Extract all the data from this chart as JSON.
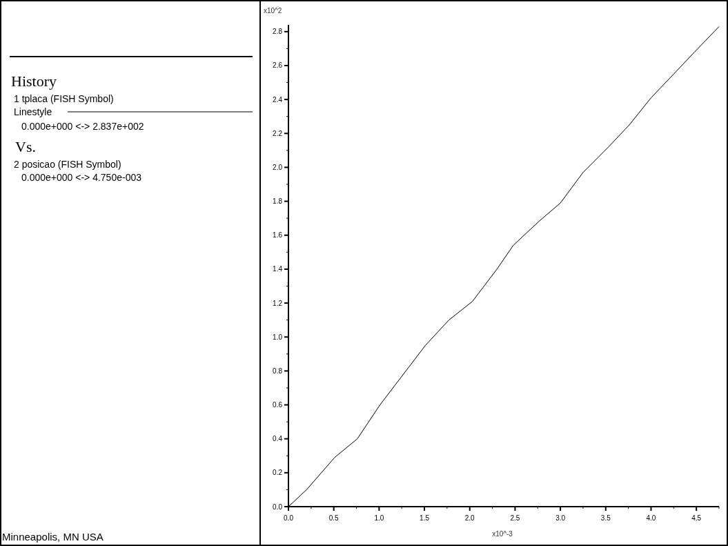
{
  "chart_data": {
    "type": "line",
    "xlabel": "x10^-3",
    "ylabel": "x10^2",
    "annotations": [
      "History",
      "1 tplaca (FISH Symbol)",
      "Linestyle",
      "0.000e+000 <->  2.837e+002",
      "Vs.",
      "2 posicao (FISH Symbol)",
      "0.000e+000 <->  4.750e-003",
      "Minneapolis, MN  USA"
    ],
    "series": [
      {
        "color": "#000000",
        "x": [
          0,
          0.2,
          0.51,
          0.76,
          1.01,
          1.51,
          1.77,
          2.03,
          2.3,
          2.48,
          2.76,
          3.0,
          3.25,
          3.53,
          3.76,
          4.0,
          4.25,
          4.48,
          4.75
        ],
        "values": [
          0,
          0.1,
          0.29,
          0.4,
          0.6,
          0.95,
          1.1,
          1.21,
          1.4,
          1.54,
          1.68,
          1.79,
          1.97,
          2.12,
          2.25,
          2.41,
          2.55,
          2.68,
          2.83
        ]
      }
    ],
    "xlim": [
      0,
      4.75
    ],
    "ylim": [
      0,
      2.84
    ],
    "xticks": [
      {
        "value": 0,
        "label": "0.0"
      },
      {
        "value": 0.25,
        "label": null
      },
      {
        "value": 0.5,
        "label": "0.5"
      },
      {
        "value": 0.75,
        "label": null
      },
      {
        "value": 1,
        "label": "1.0"
      },
      {
        "value": 1.25,
        "label": null
      },
      {
        "value": 1.5,
        "label": "1.5"
      },
      {
        "value": 1.75,
        "label": null
      },
      {
        "value": 2,
        "label": "2.0"
      },
      {
        "value": 2.25,
        "label": null
      },
      {
        "value": 2.5,
        "label": "2.5"
      },
      {
        "value": 2.75,
        "label": null
      },
      {
        "value": 3,
        "label": "3.0"
      },
      {
        "value": 3.25,
        "label": null
      },
      {
        "value": 3.5,
        "label": "3.5"
      },
      {
        "value": 3.75,
        "label": null
      },
      {
        "value": 4,
        "label": "4.0"
      },
      {
        "value": 4.25,
        "label": null
      },
      {
        "value": 4.5,
        "label": "4.5"
      },
      {
        "value": 4.75,
        "label": null
      }
    ],
    "yticks": [
      {
        "value": 0,
        "label": "0.0"
      },
      {
        "value": 0.1,
        "label": null
      },
      {
        "value": 0.2,
        "label": "0.2"
      },
      {
        "value": 0.3,
        "label": null
      },
      {
        "value": 0.4,
        "label": "0.4"
      },
      {
        "value": 0.5,
        "label": null
      },
      {
        "value": 0.6,
        "label": "0.6"
      },
      {
        "value": 0.7,
        "label": null
      },
      {
        "value": 0.8,
        "label": "0.8"
      },
      {
        "value": 0.9,
        "label": null
      },
      {
        "value": 1,
        "label": "1.0"
      },
      {
        "value": 1.1,
        "label": null
      },
      {
        "value": 1.2,
        "label": "1.2"
      },
      {
        "value": 1.3,
        "label": null
      },
      {
        "value": 1.4,
        "label": "1.4"
      },
      {
        "value": 1.5,
        "label": null
      },
      {
        "value": 1.6,
        "label": "1.6"
      },
      {
        "value": 1.7,
        "label": null
      },
      {
        "value": 1.8,
        "label": "1.8"
      },
      {
        "value": 1.9,
        "label": null
      },
      {
        "value": 2,
        "label": "2.0"
      },
      {
        "value": 2.1,
        "label": null
      },
      {
        "value": 2.2,
        "label": "2.2"
      },
      {
        "value": 2.3,
        "label": null
      },
      {
        "value": 2.4,
        "label": "2.4"
      },
      {
        "value": 2.5,
        "label": null
      },
      {
        "value": 2.6,
        "label": "2.6"
      },
      {
        "value": 2.7,
        "label": null
      },
      {
        "value": 2.8,
        "label": "2.8"
      }
    ],
    "line_style": "solid"
  }
}
